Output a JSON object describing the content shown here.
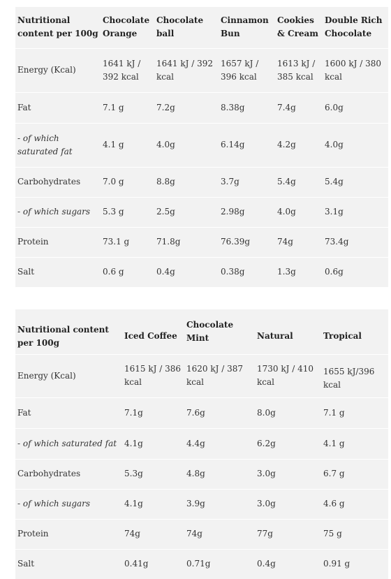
{
  "table1": {
    "headers": [
      "Nutritional content per 100g",
      "Chocolate Orange",
      "Chocolate ball",
      "Cinnamon Bun",
      "Cookies & Cream",
      "Double Rich Chocolate"
    ],
    "rows": [
      {
        "label": "Energy (Kcal)",
        "values": [
          "1641 kJ / 392 kcal",
          "1641 kJ / 392 kcal",
          "1657 kJ / 396 kcal",
          "1613 kJ / 385 kcal",
          "1600 kJ / 380 kcal"
        ]
      },
      {
        "label": "Fat",
        "values": [
          "7.1 g",
          "7.2g",
          "8.38g",
          "7.4g",
          "6.0g"
        ]
      },
      {
        "label": "- of which saturated fat",
        "values": [
          "4.1 g",
          "4.0g",
          "6.14g",
          "4.2g",
          "4.0g"
        ]
      },
      {
        "label": "Carbohydrates",
        "values": [
          "7.0 g",
          "8.8g",
          "3.7g",
          "5.4g",
          "5.4g"
        ]
      },
      {
        "label": "- of which sugars",
        "values": [
          "5.3 g",
          "2.5g",
          "2.98g",
          "4.0g",
          "3.1g"
        ]
      },
      {
        "label": "Protein",
        "values": [
          "73.1 g",
          "71.8g",
          "76.39g",
          "74g",
          "73.4g"
        ]
      },
      {
        "label": "Salt",
        "values": [
          "0.6 g",
          "0.4g",
          "0.38g",
          "1.3g",
          "0.6g"
        ]
      }
    ]
  },
  "table2": {
    "headers": [
      "Nutritional content per 100g",
      "Iced Coffee",
      "Chocolate Mint",
      "Natural",
      "Tropical"
    ],
    "rows": [
      {
        "label": "Energy (Kcal)",
        "values": [
          "1615 kJ / 386 kcal",
          "1620 kJ / 387 kcal",
          "1730 kJ / 410 kcal",
          "1655 kJ/396 kcal"
        ]
      },
      {
        "label": "Fat",
        "values": [
          "7.1g",
          "7.6g",
          "8.0g",
          "7.1 g"
        ]
      },
      {
        "label": "- of which saturated fat",
        "values": [
          "4.1g",
          "4.4g",
          "6.2g",
          "4.1 g"
        ]
      },
      {
        "label": "Carbohydrates",
        "values": [
          "5.3g",
          "4.8g",
          "3.0g",
          "6.7 g"
        ]
      },
      {
        "label": "- of which sugars",
        "values": [
          "4.1g",
          "3.9g",
          "3.0g",
          "4.6 g"
        ]
      },
      {
        "label": "Protein",
        "values": [
          "74g",
          "74g",
          "77g",
          "75 g"
        ]
      },
      {
        "label": "Salt",
        "values": [
          "0.41g",
          "0.71g",
          "0.4g",
          "0.91 g"
        ]
      }
    ]
  }
}
